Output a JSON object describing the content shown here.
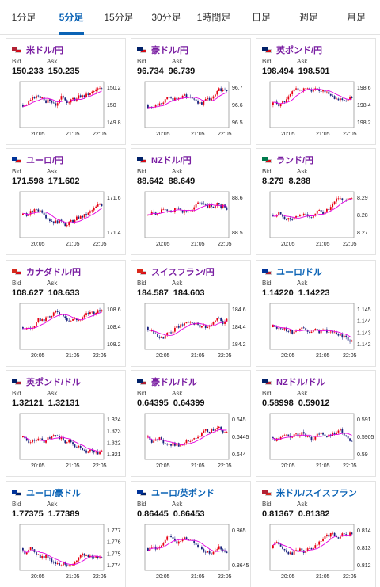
{
  "tabs": [
    {
      "label": "1分足",
      "active": false
    },
    {
      "label": "5分足",
      "active": true
    },
    {
      "label": "15分足",
      "active": false
    },
    {
      "label": "30分足",
      "active": false
    },
    {
      "label": "1時間足",
      "active": false
    },
    {
      "label": "日足",
      "active": false
    },
    {
      "label": "週足",
      "active": false
    },
    {
      "label": "月足",
      "active": false
    }
  ],
  "colors": {
    "accent": "#0b63b5",
    "pair_name": "#7a1fa2",
    "up": "#e60012",
    "down": "#1a237e",
    "ma": "#e400e0"
  },
  "bid_label": "Bid",
  "ask_label": "Ask",
  "cards": [
    {
      "name": "米ドル/円",
      "name_color": "purple",
      "flag": [
        "#b22234",
        "#d80c18"
      ],
      "bid": "150.233",
      "ask": "150.235",
      "yticks": [
        "150.2",
        "150",
        "149.8"
      ],
      "xticks": [
        "20:05",
        "21:05",
        "22:05"
      ]
    },
    {
      "name": "豪ドル/円",
      "name_color": "purple",
      "flag": [
        "#012169",
        "#d80c18"
      ],
      "bid": "96.734",
      "ask": "96.739",
      "yticks": [
        "96.7",
        "96.6",
        "96.5"
      ],
      "xticks": [
        "20:05",
        "21:05",
        "22:05"
      ]
    },
    {
      "name": "英ポンド/円",
      "name_color": "purple",
      "flag": [
        "#012169",
        "#d80c18"
      ],
      "bid": "198.494",
      "ask": "198.501",
      "yticks": [
        "198.6",
        "198.4",
        "198.2"
      ],
      "xticks": [
        "20:05",
        "21:05",
        "22:05"
      ]
    },
    {
      "name": "ユーロ/円",
      "name_color": "purple",
      "flag": [
        "#003399",
        "#d80c18"
      ],
      "bid": "171.598",
      "ask": "171.602",
      "yticks": [
        "171.6",
        "171.4"
      ],
      "xticks": [
        "20:05",
        "21:05",
        "22:05"
      ]
    },
    {
      "name": "NZドル/円",
      "name_color": "purple",
      "flag": [
        "#012169",
        "#d80c18"
      ],
      "bid": "88.642",
      "ask": "88.649",
      "yticks": [
        "88.6",
        "88.5"
      ],
      "xticks": [
        "20:05",
        "21:05",
        "22:05"
      ]
    },
    {
      "name": "ランド/円",
      "name_color": "purple",
      "flag": [
        "#007a4d",
        "#d80c18"
      ],
      "bid": "8.279",
      "ask": "8.288",
      "yticks": [
        "8.29",
        "8.28",
        "8.27"
      ],
      "xticks": [
        "20:05",
        "21:05",
        "22:05"
      ]
    },
    {
      "name": "カナダドル/円",
      "name_color": "purple",
      "flag": [
        "#d52b1e",
        "#d80c18"
      ],
      "bid": "108.627",
      "ask": "108.633",
      "yticks": [
        "108.6",
        "108.4",
        "108.2"
      ],
      "xticks": [
        "20:05",
        "21:05",
        "22:05"
      ]
    },
    {
      "name": "スイスフラン/円",
      "name_color": "purple",
      "flag": [
        "#da291c",
        "#d80c18"
      ],
      "bid": "184.587",
      "ask": "184.603",
      "yticks": [
        "184.6",
        "184.4",
        "184.2"
      ],
      "xticks": [
        "20:05",
        "21:05",
        "22:05"
      ]
    },
    {
      "name": "ユーロ/ドル",
      "name_color": "blue",
      "flag": [
        "#003399",
        "#b22234"
      ],
      "bid": "1.14220",
      "ask": "1.14223",
      "yticks": [
        "1.145",
        "1.144",
        "1.143",
        "1.142"
      ],
      "xticks": [
        "20:05",
        "21:05",
        "22:05"
      ]
    },
    {
      "name": "英ポンド/ドル",
      "name_color": "purple",
      "flag": [
        "#012169",
        "#b22234"
      ],
      "bid": "1.32121",
      "ask": "1.32131",
      "yticks": [
        "1.324",
        "1.323",
        "1.322",
        "1.321"
      ],
      "xticks": [
        "20:05",
        "21:05",
        "22:05"
      ]
    },
    {
      "name": "豪ドル/ドル",
      "name_color": "purple",
      "flag": [
        "#012169",
        "#b22234"
      ],
      "bid": "0.64395",
      "ask": "0.64399",
      "yticks": [
        "0.645",
        "0.6445",
        "0.644"
      ],
      "xticks": [
        "20:05",
        "21:05",
        "22:05"
      ]
    },
    {
      "name": "NZドル/ドル",
      "name_color": "purple",
      "flag": [
        "#012169",
        "#b22234"
      ],
      "bid": "0.58998",
      "ask": "0.59012",
      "yticks": [
        "0.591",
        "0.5905",
        "0.59"
      ],
      "xticks": [
        "20:05",
        "21:05",
        "22:05"
      ]
    },
    {
      "name": "ユーロ/豪ドル",
      "name_color": "blue",
      "flag": [
        "#003399",
        "#012169"
      ],
      "bid": "1.77375",
      "ask": "1.77389",
      "yticks": [
        "1.777",
        "1.776",
        "1.775",
        "1.774"
      ],
      "xticks": [
        "20:05",
        "21:05",
        "22:05"
      ]
    },
    {
      "name": "ユーロ/英ポンド",
      "name_color": "blue",
      "flag": [
        "#003399",
        "#012169"
      ],
      "bid": "0.86445",
      "ask": "0.86453",
      "yticks": [
        "0.865",
        "0.8645"
      ],
      "xticks": [
        "20:05",
        "21:05",
        "22:05"
      ]
    },
    {
      "name": "米ドル/スイスフラン",
      "name_color": "blue",
      "flag": [
        "#b22234",
        "#da291c"
      ],
      "bid": "0.81367",
      "ask": "0.81382",
      "yticks": [
        "0.814",
        "0.813",
        "0.812"
      ],
      "xticks": [
        "20:05",
        "21:05",
        "22:05"
      ]
    }
  ]
}
